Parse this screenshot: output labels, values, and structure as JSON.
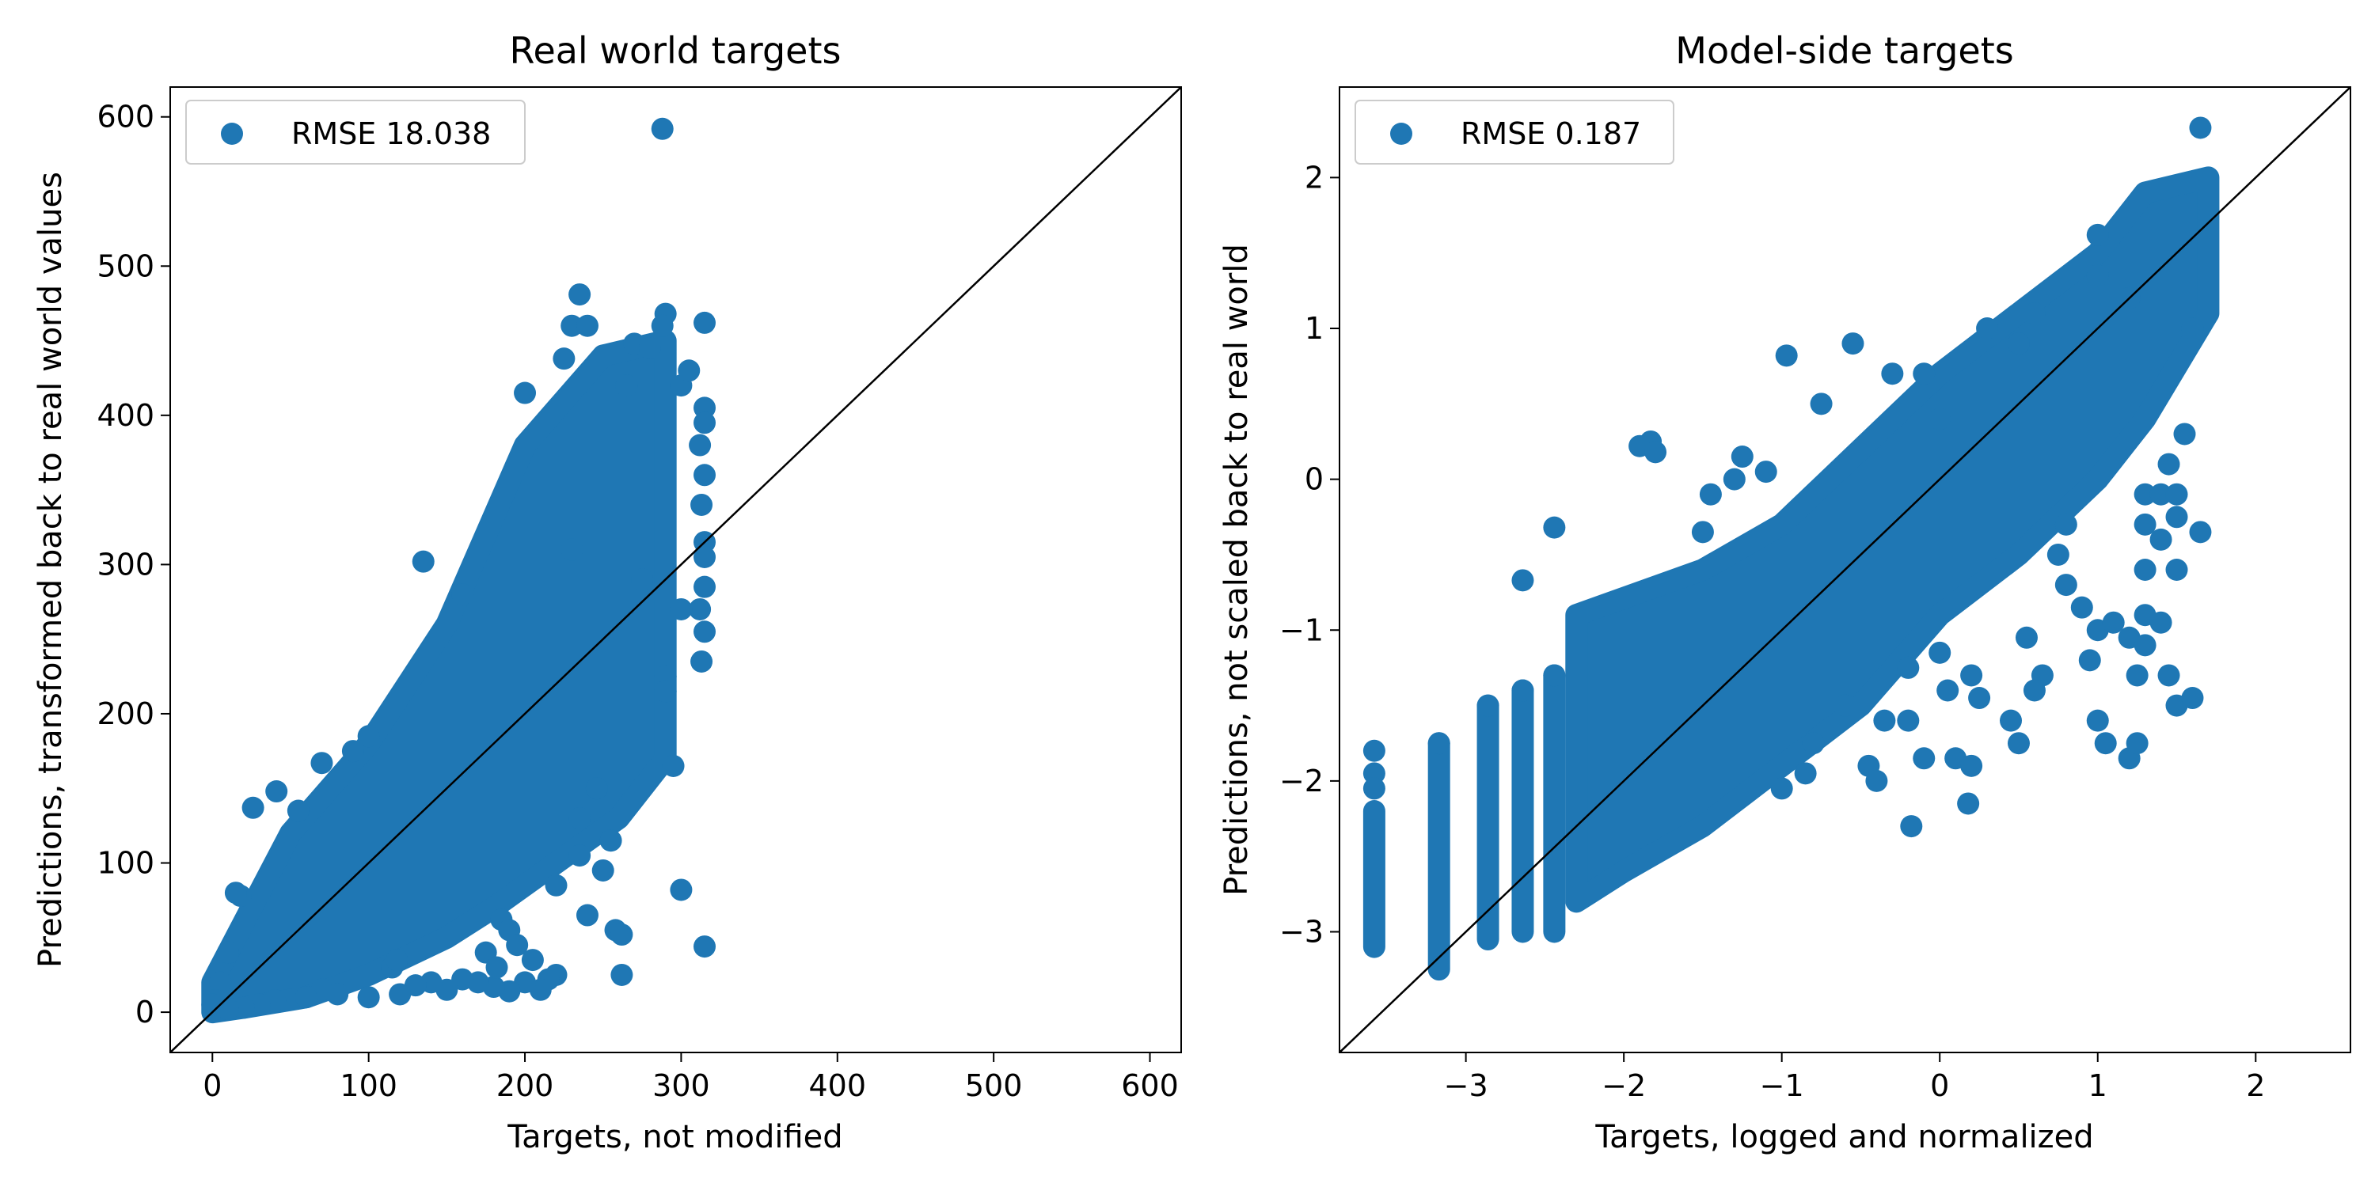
{
  "chart_data": [
    {
      "type": "scatter",
      "title": "Real world targets",
      "xlabel": "Targets, not modified",
      "ylabel": "Predictions, transformed back to real world values",
      "xlim": [
        -27,
        620
      ],
      "ylim": [
        -27,
        620
      ],
      "xticks": [
        0,
        100,
        200,
        300,
        400,
        500,
        600
      ],
      "yticks": [
        0,
        100,
        200,
        300,
        400,
        500,
        600
      ],
      "xtick_labels": [
        "0",
        "100",
        "200",
        "300",
        "400",
        "500",
        "600"
      ],
      "ytick_labels": [
        "0",
        "100",
        "200",
        "300",
        "400",
        "500",
        "600"
      ],
      "grid": false,
      "legend_position": "top-left",
      "reference_line": "y = x",
      "series": [
        {
          "name": "RMSE 18.038",
          "color": "#1f77b4",
          "density_band": {
            "x_upper": [
              0,
              20,
              50,
              100,
              150,
              200,
              250,
              290
            ],
            "y_upper": [
              20,
              60,
              120,
              180,
              260,
              380,
              440,
              450
            ],
            "x_lower": [
              290,
              260,
              220,
              180,
              150,
              100,
              60,
              20,
              0
            ],
            "y_lower": [
              170,
              130,
              100,
              70,
              50,
              25,
              10,
              3,
              0
            ]
          },
          "points": [
            [
              288,
              592
            ],
            [
              235,
              481
            ],
            [
              290,
              468
            ],
            [
              288,
              460
            ],
            [
              315,
              462
            ],
            [
              230,
              460
            ],
            [
              240,
              460
            ],
            [
              270,
              448
            ],
            [
              280,
              445
            ],
            [
              200,
              415
            ],
            [
              225,
              438
            ],
            [
              265,
              420
            ],
            [
              300,
              420
            ],
            [
              305,
              430
            ],
            [
              315,
              405
            ],
            [
              315,
              395
            ],
            [
              312,
              380
            ],
            [
              315,
              360
            ],
            [
              313,
              340
            ],
            [
              315,
              315
            ],
            [
              315,
              305
            ],
            [
              315,
              285
            ],
            [
              312,
              270
            ],
            [
              315,
              255
            ],
            [
              313,
              235
            ],
            [
              290,
              225
            ],
            [
              290,
              215
            ],
            [
              300,
              270
            ],
            [
              135,
              302
            ],
            [
              160,
              280
            ],
            [
              230,
              310
            ],
            [
              275,
              290
            ],
            [
              295,
              165
            ],
            [
              246,
              150
            ],
            [
              255,
              115
            ],
            [
              250,
              95
            ],
            [
              235,
              105
            ],
            [
              235,
              130
            ],
            [
              240,
              65
            ],
            [
              220,
              85
            ],
            [
              258,
              55
            ],
            [
              262,
              52
            ],
            [
              262,
              25
            ],
            [
              220,
              25
            ],
            [
              215,
              22
            ],
            [
              210,
              15
            ],
            [
              200,
              20
            ],
            [
              190,
              14
            ],
            [
              180,
              17
            ],
            [
              170,
              20
            ],
            [
              160,
              22
            ],
            [
              150,
              15
            ],
            [
              140,
              20
            ],
            [
              130,
              18
            ],
            [
              120,
              12
            ],
            [
              100,
              10
            ],
            [
              80,
              12
            ],
            [
              70,
              15
            ],
            [
              60,
              10
            ],
            [
              40,
              8
            ],
            [
              30,
              5
            ],
            [
              20,
              3
            ],
            [
              10,
              2
            ],
            [
              300,
              82
            ],
            [
              315,
              44
            ],
            [
              26,
              137
            ],
            [
              41,
              148
            ],
            [
              55,
              135
            ],
            [
              70,
              167
            ],
            [
              90,
              175
            ],
            [
              100,
              185
            ],
            [
              18,
              78
            ],
            [
              15,
              80
            ],
            [
              10,
              40
            ],
            [
              5,
              20
            ],
            [
              2,
              8
            ],
            [
              0,
              5
            ],
            [
              115,
              30
            ],
            [
              118,
              35
            ],
            [
              185,
              62
            ],
            [
              190,
              55
            ],
            [
              195,
              45
            ],
            [
              175,
              40
            ],
            [
              182,
              30
            ],
            [
              205,
              35
            ]
          ]
        }
      ]
    },
    {
      "type": "scatter",
      "title": "Model-side targets",
      "xlabel": "Targets, logged and normalized",
      "ylabel": "Predictions, not scaled back to real world",
      "xlim": [
        -3.8,
        2.6
      ],
      "ylim": [
        -3.8,
        2.6
      ],
      "xticks": [
        -3,
        -2,
        -1,
        0,
        1,
        2
      ],
      "yticks": [
        -3,
        -2,
        -1,
        0,
        1,
        2
      ],
      "xtick_labels": [
        "−3",
        "−2",
        "−1",
        "0",
        "1",
        "2"
      ],
      "ytick_labels": [
        "−3",
        "−2",
        "−1",
        "0",
        "1",
        "2"
      ],
      "grid": false,
      "legend_position": "top-left",
      "reference_line": "y = x",
      "series": [
        {
          "name": "RMSE 0.187",
          "color": "#1f77b4",
          "density_band": {
            "x_upper": [
              -2.3,
              -1.5,
              -1.0,
              -0.5,
              0.0,
              0.5,
              1.0,
              1.3,
              1.7
            ],
            "y_upper": [
              -0.9,
              -0.6,
              -0.3,
              0.2,
              0.7,
              1.1,
              1.5,
              1.9,
              2.0
            ],
            "x_lower": [
              1.7,
              1.3,
              1.0,
              0.5,
              0.0,
              -0.5,
              -1.0,
              -1.5,
              -2.0,
              -2.3
            ],
            "y_lower": [
              1.1,
              0.4,
              0.0,
              -0.5,
              -0.9,
              -1.5,
              -1.9,
              -2.3,
              -2.6,
              -2.8
            ]
          },
          "column_strips": [
            {
              "x": -3.58,
              "ymin": -3.1,
              "ymax": -2.2
            },
            {
              "x": -3.17,
              "ymin": -3.25,
              "ymax": -1.75
            },
            {
              "x": -2.86,
              "ymin": -3.05,
              "ymax": -1.5
            },
            {
              "x": -2.64,
              "ymin": -3.0,
              "ymax": -1.4
            },
            {
              "x": -2.44,
              "ymin": -3.0,
              "ymax": -1.3
            }
          ],
          "points": [
            [
              -3.58,
              -1.8
            ],
            [
              -3.58,
              -1.95
            ],
            [
              -3.58,
              -2.05
            ],
            [
              -3.17,
              -1.75
            ],
            [
              -2.86,
              -1.5
            ],
            [
              -2.64,
              -1.4
            ],
            [
              -2.44,
              -1.3
            ],
            [
              -2.64,
              -0.67
            ],
            [
              -2.44,
              -0.32
            ],
            [
              -1.9,
              0.22
            ],
            [
              -1.83,
              0.25
            ],
            [
              -1.8,
              0.18
            ],
            [
              -1.5,
              -0.35
            ],
            [
              -1.45,
              -0.1
            ],
            [
              -1.3,
              0.0
            ],
            [
              -1.25,
              0.15
            ],
            [
              -1.1,
              0.05
            ],
            [
              -0.97,
              0.82
            ],
            [
              -0.75,
              0.5
            ],
            [
              -0.55,
              0.9
            ],
            [
              -0.3,
              0.7
            ],
            [
              -0.1,
              0.7
            ],
            [
              0.0,
              0.4
            ],
            [
              0.3,
              1.0
            ],
            [
              0.5,
              0.9
            ],
            [
              0.6,
              1.1
            ],
            [
              1.0,
              1.62
            ],
            [
              1.0,
              1.35
            ],
            [
              1.2,
              1.2
            ],
            [
              1.6,
              1.0
            ],
            [
              1.65,
              2.33
            ],
            [
              1.3,
              -0.1
            ],
            [
              1.45,
              0.1
            ],
            [
              1.55,
              0.3
            ],
            [
              1.65,
              -0.35
            ],
            [
              1.4,
              -0.1
            ],
            [
              1.4,
              -0.4
            ],
            [
              1.5,
              -0.6
            ],
            [
              1.3,
              -0.3
            ],
            [
              1.3,
              -0.6
            ],
            [
              0.8,
              -0.3
            ],
            [
              0.75,
              -0.5
            ],
            [
              0.8,
              -0.7
            ],
            [
              0.9,
              -0.85
            ],
            [
              1.0,
              -1.0
            ],
            [
              1.1,
              -0.95
            ],
            [
              1.2,
              -1.05
            ],
            [
              1.3,
              -1.1
            ],
            [
              1.25,
              -1.3
            ],
            [
              1.3,
              -0.9
            ],
            [
              1.4,
              -0.95
            ],
            [
              1.45,
              -1.3
            ],
            [
              1.5,
              -1.5
            ],
            [
              1.6,
              -1.45
            ],
            [
              1.0,
              -1.6
            ],
            [
              1.2,
              -1.85
            ],
            [
              1.05,
              -1.75
            ],
            [
              1.25,
              -1.75
            ],
            [
              0.95,
              -1.2
            ],
            [
              0.55,
              -1.05
            ],
            [
              0.65,
              -1.3
            ],
            [
              0.6,
              -1.4
            ],
            [
              0.45,
              -1.6
            ],
            [
              0.5,
              -1.75
            ],
            [
              0.25,
              -1.45
            ],
            [
              0.2,
              -1.3
            ],
            [
              0.0,
              -1.15
            ],
            [
              0.05,
              -1.4
            ],
            [
              -0.2,
              -1.25
            ],
            [
              -0.1,
              -1.85
            ],
            [
              0.1,
              -1.85
            ],
            [
              0.18,
              -2.15
            ],
            [
              0.2,
              -1.9
            ],
            [
              -0.18,
              -2.3
            ],
            [
              -0.35,
              -1.6
            ],
            [
              -0.45,
              -1.9
            ],
            [
              -0.8,
              -1.75
            ],
            [
              -0.85,
              -1.95
            ],
            [
              -1.0,
              -2.05
            ],
            [
              -0.4,
              -2.0
            ],
            [
              -0.6,
              -1.5
            ],
            [
              -0.2,
              -1.6
            ],
            [
              1.5,
              -0.25
            ],
            [
              1.5,
              -0.1
            ]
          ]
        }
      ]
    }
  ]
}
